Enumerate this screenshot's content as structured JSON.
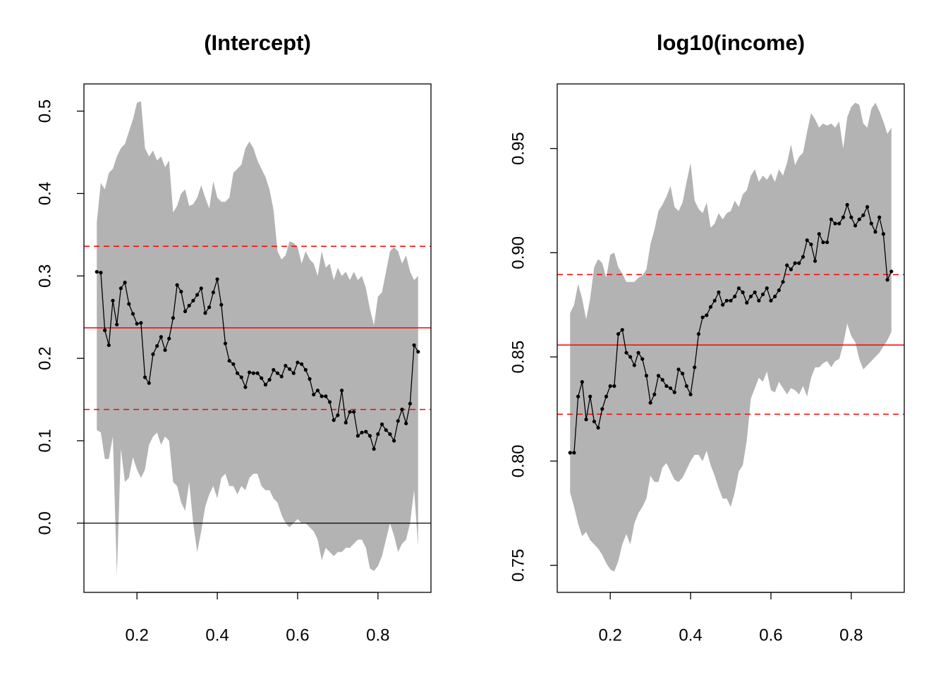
{
  "chart_data": [
    {
      "type": "line",
      "title": "(Intercept)",
      "x": [
        0.1,
        0.11,
        0.12,
        0.13,
        0.14,
        0.15,
        0.16,
        0.17,
        0.18,
        0.19,
        0.2,
        0.21,
        0.22,
        0.23,
        0.24,
        0.25,
        0.26,
        0.27,
        0.28,
        0.29,
        0.3,
        0.31,
        0.32,
        0.33,
        0.34,
        0.35,
        0.36,
        0.37,
        0.38,
        0.39,
        0.4,
        0.41,
        0.42,
        0.43,
        0.44,
        0.45,
        0.46,
        0.47,
        0.48,
        0.49,
        0.5,
        0.51,
        0.52,
        0.53,
        0.54,
        0.55,
        0.56,
        0.57,
        0.58,
        0.59,
        0.6,
        0.61,
        0.62,
        0.63,
        0.64,
        0.65,
        0.66,
        0.67,
        0.68,
        0.69,
        0.7,
        0.71,
        0.72,
        0.73,
        0.74,
        0.75,
        0.76,
        0.77,
        0.78,
        0.79,
        0.8,
        0.81,
        0.82,
        0.83,
        0.84,
        0.85,
        0.86,
        0.87,
        0.88,
        0.89,
        0.9
      ],
      "values": [
        0.305,
        0.304,
        0.234,
        0.216,
        0.27,
        0.241,
        0.285,
        0.292,
        0.266,
        0.254,
        0.242,
        0.243,
        0.177,
        0.17,
        0.205,
        0.215,
        0.226,
        0.21,
        0.224,
        0.249,
        0.289,
        0.281,
        0.257,
        0.264,
        0.27,
        0.277,
        0.285,
        0.255,
        0.262,
        0.28,
        0.296,
        0.265,
        0.218,
        0.197,
        0.193,
        0.182,
        0.177,
        0.165,
        0.183,
        0.182,
        0.182,
        0.176,
        0.168,
        0.174,
        0.186,
        0.182,
        0.178,
        0.191,
        0.187,
        0.182,
        0.195,
        0.193,
        0.186,
        0.175,
        0.156,
        0.161,
        0.154,
        0.154,
        0.147,
        0.125,
        0.131,
        0.161,
        0.122,
        0.135,
        0.135,
        0.106,
        0.11,
        0.111,
        0.106,
        0.09,
        0.108,
        0.12,
        0.113,
        0.108,
        0.1,
        0.124,
        0.138,
        0.121,
        0.145,
        0.216,
        0.208
      ],
      "upper": [
        0.365,
        0.413,
        0.405,
        0.425,
        0.43,
        0.445,
        0.455,
        0.46,
        0.475,
        0.49,
        0.51,
        0.512,
        0.455,
        0.445,
        0.452,
        0.44,
        0.445,
        0.432,
        0.44,
        0.377,
        0.385,
        0.4,
        0.405,
        0.385,
        0.387,
        0.395,
        0.41,
        0.395,
        0.382,
        0.415,
        0.395,
        0.39,
        0.39,
        0.395,
        0.425,
        0.43,
        0.435,
        0.455,
        0.463,
        0.455,
        0.44,
        0.43,
        0.42,
        0.405,
        0.38,
        0.33,
        0.32,
        0.325,
        0.342,
        0.34,
        0.335,
        0.315,
        0.33,
        0.32,
        0.315,
        0.3,
        0.33,
        0.31,
        0.315,
        0.295,
        0.31,
        0.3,
        0.305,
        0.295,
        0.305,
        0.295,
        0.3,
        0.285,
        0.26,
        0.24,
        0.275,
        0.28,
        0.305,
        0.33,
        0.335,
        0.33,
        0.315,
        0.325,
        0.305,
        0.295,
        0.3
      ],
      "lower": [
        0.113,
        0.11,
        0.078,
        0.078,
        0.105,
        -0.063,
        0.09,
        0.05,
        0.055,
        0.08,
        0.065,
        0.055,
        0.065,
        0.095,
        0.105,
        0.11,
        0.095,
        0.105,
        0.1,
        0.05,
        0.045,
        0.025,
        0.015,
        0.05,
        0.0,
        -0.035,
        -0.01,
        0.02,
        0.035,
        0.045,
        0.03,
        0.055,
        0.06,
        0.045,
        0.045,
        0.035,
        0.045,
        0.04,
        0.055,
        0.06,
        0.06,
        0.045,
        0.04,
        0.04,
        0.03,
        0.025,
        0.01,
        0.0,
        -0.005,
        0.0,
        0.005,
        0.0,
        0.0,
        -0.005,
        -0.01,
        -0.02,
        -0.045,
        -0.03,
        -0.035,
        -0.04,
        -0.035,
        -0.035,
        -0.03,
        -0.03,
        -0.025,
        -0.02,
        -0.02,
        -0.03,
        -0.055,
        -0.058,
        -0.052,
        -0.04,
        -0.02,
        0.0,
        -0.015,
        -0.035,
        -0.025,
        -0.02,
        0.0,
        0.04,
        -0.028
      ],
      "reference_line": 0.237,
      "reference_band": [
        0.138,
        0.336
      ],
      "zero_line": 0,
      "band_color": "#b3b3b3",
      "reference_color": "#ff0000",
      "color": "#000000",
      "xlim": [
        0.068,
        0.932
      ],
      "ylim": [
        -0.084,
        0.533
      ],
      "xticks": [
        0.2,
        0.4,
        0.6,
        0.8
      ],
      "yticks": [
        {
          "value": 0,
          "label": "0.0"
        },
        0.1,
        0.2,
        0.3,
        0.4,
        0.5
      ]
    },
    {
      "type": "line",
      "title": "log10(income)",
      "x": [
        0.1,
        0.11,
        0.12,
        0.13,
        0.14,
        0.15,
        0.16,
        0.17,
        0.18,
        0.19,
        0.2,
        0.21,
        0.22,
        0.23,
        0.24,
        0.25,
        0.26,
        0.27,
        0.28,
        0.29,
        0.3,
        0.31,
        0.32,
        0.33,
        0.34,
        0.35,
        0.36,
        0.37,
        0.38,
        0.39,
        0.4,
        0.41,
        0.42,
        0.43,
        0.44,
        0.45,
        0.46,
        0.47,
        0.48,
        0.49,
        0.5,
        0.51,
        0.52,
        0.53,
        0.54,
        0.55,
        0.56,
        0.57,
        0.58,
        0.59,
        0.6,
        0.61,
        0.62,
        0.63,
        0.64,
        0.65,
        0.66,
        0.67,
        0.68,
        0.69,
        0.7,
        0.71,
        0.72,
        0.73,
        0.74,
        0.75,
        0.76,
        0.77,
        0.78,
        0.79,
        0.8,
        0.81,
        0.82,
        0.83,
        0.84,
        0.85,
        0.86,
        0.87,
        0.88,
        0.89,
        0.9
      ],
      "values": [
        0.804,
        0.804,
        0.831,
        0.838,
        0.82,
        0.831,
        0.819,
        0.816,
        0.825,
        0.831,
        0.836,
        0.836,
        0.861,
        0.863,
        0.852,
        0.85,
        0.846,
        0.852,
        0.849,
        0.841,
        0.828,
        0.832,
        0.841,
        0.839,
        0.836,
        0.835,
        0.833,
        0.844,
        0.842,
        0.836,
        0.832,
        0.845,
        0.861,
        0.869,
        0.87,
        0.874,
        0.877,
        0.881,
        0.875,
        0.877,
        0.877,
        0.879,
        0.883,
        0.881,
        0.876,
        0.879,
        0.881,
        0.877,
        0.88,
        0.883,
        0.877,
        0.879,
        0.882,
        0.886,
        0.894,
        0.892,
        0.895,
        0.895,
        0.898,
        0.906,
        0.904,
        0.896,
        0.909,
        0.905,
        0.905,
        0.916,
        0.914,
        0.914,
        0.917,
        0.923,
        0.917,
        0.913,
        0.916,
        0.918,
        0.922,
        0.914,
        0.91,
        0.917,
        0.909,
        0.887,
        0.891
      ],
      "upper": [
        0.871,
        0.875,
        0.885,
        0.878,
        0.868,
        0.878,
        0.893,
        0.897,
        0.895,
        0.888,
        0.899,
        0.9,
        0.893,
        0.89,
        0.886,
        0.886,
        0.886,
        0.888,
        0.889,
        0.892,
        0.904,
        0.911,
        0.92,
        0.923,
        0.927,
        0.932,
        0.922,
        0.92,
        0.924,
        0.934,
        0.943,
        0.925,
        0.921,
        0.919,
        0.924,
        0.912,
        0.914,
        0.919,
        0.916,
        0.919,
        0.92,
        0.925,
        0.922,
        0.928,
        0.93,
        0.937,
        0.94,
        0.934,
        0.937,
        0.935,
        0.938,
        0.934,
        0.94,
        0.937,
        0.943,
        0.952,
        0.942,
        0.946,
        0.948,
        0.958,
        0.967,
        0.964,
        0.96,
        0.962,
        0.961,
        0.962,
        0.96,
        0.963,
        0.95,
        0.965,
        0.97,
        0.972,
        0.971,
        0.962,
        0.96,
        0.969,
        0.972,
        0.968,
        0.963,
        0.957,
        0.96
      ],
      "lower": [
        0.785,
        0.778,
        0.77,
        0.764,
        0.766,
        0.762,
        0.76,
        0.758,
        0.755,
        0.751,
        0.748,
        0.747,
        0.752,
        0.76,
        0.765,
        0.76,
        0.77,
        0.775,
        0.778,
        0.782,
        0.793,
        0.79,
        0.79,
        0.797,
        0.799,
        0.795,
        0.791,
        0.79,
        0.792,
        0.796,
        0.8,
        0.803,
        0.803,
        0.8,
        0.805,
        0.798,
        0.793,
        0.787,
        0.782,
        0.782,
        0.778,
        0.785,
        0.795,
        0.798,
        0.81,
        0.83,
        0.835,
        0.84,
        0.838,
        0.843,
        0.834,
        0.833,
        0.838,
        0.835,
        0.832,
        0.835,
        0.834,
        0.832,
        0.836,
        0.831,
        0.84,
        0.845,
        0.845,
        0.847,
        0.848,
        0.845,
        0.848,
        0.849,
        0.856,
        0.866,
        0.86,
        0.857,
        0.849,
        0.844,
        0.846,
        0.848,
        0.85,
        0.852,
        0.855,
        0.858,
        0.862
      ],
      "reference_line": 0.8557,
      "reference_band": [
        0.8225,
        0.8895
      ],
      "band_color": "#b3b3b3",
      "reference_color": "#ff0000",
      "color": "#000000",
      "xlim": [
        0.068,
        0.932
      ],
      "ylim": [
        0.737,
        0.981
      ],
      "xticks": [
        0.2,
        0.4,
        0.6,
        0.8
      ],
      "yticks": [
        0.75,
        {
          "value": 0.8,
          "label": "0.80"
        },
        0.85,
        {
          "value": 0.9,
          "label": "0.90"
        },
        0.95
      ]
    }
  ]
}
